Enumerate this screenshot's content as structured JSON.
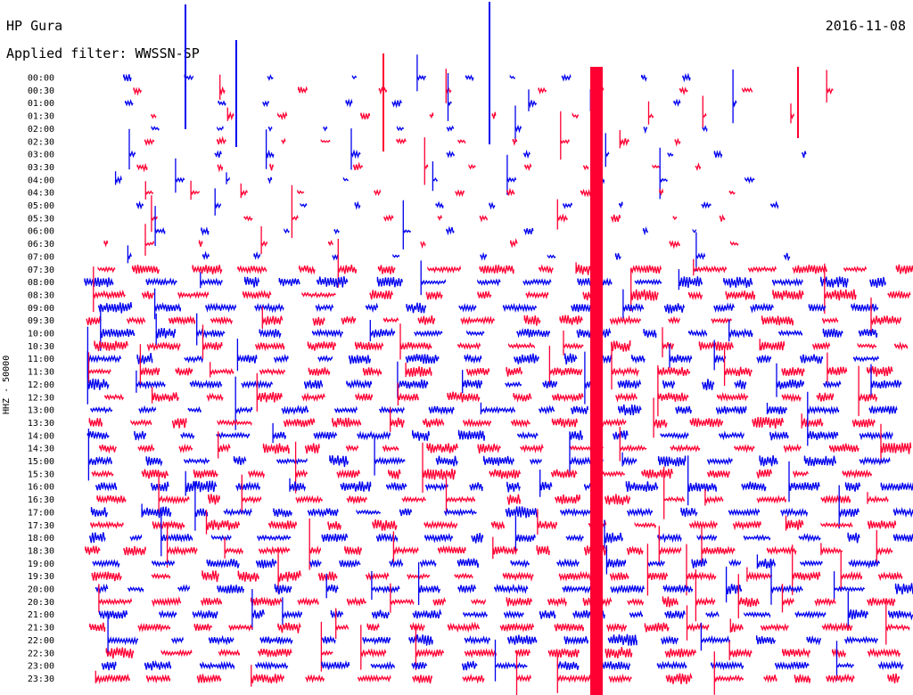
{
  "header": {
    "station": "HP Gura",
    "date": "2016-11-08",
    "filter": "Applied filter: WWSSN-SP"
  },
  "chart_data": {
    "type": "line",
    "title": "HP Gura",
    "ylabel": "HHZ - 50000",
    "row_labels": [
      "00:00",
      "00:30",
      "01:00",
      "01:30",
      "02:00",
      "02:30",
      "03:00",
      "03:30",
      "04:00",
      "04:30",
      "05:00",
      "05:30",
      "06:00",
      "06:30",
      "07:00",
      "07:30",
      "08:00",
      "08:30",
      "09:00",
      "09:30",
      "10:00",
      "10:30",
      "11:00",
      "11:30",
      "12:00",
      "12:30",
      "13:00",
      "13:30",
      "14:00",
      "14:30",
      "15:00",
      "15:30",
      "16:00",
      "16:30",
      "17:00",
      "17:30",
      "18:00",
      "18:30",
      "19:00",
      "19:30",
      "20:00",
      "20:30",
      "21:00",
      "21:30",
      "22:00",
      "22:30",
      "23:00",
      "23:30"
    ],
    "series_colors": [
      "#0000ee",
      "#ff0033"
    ]
  }
}
